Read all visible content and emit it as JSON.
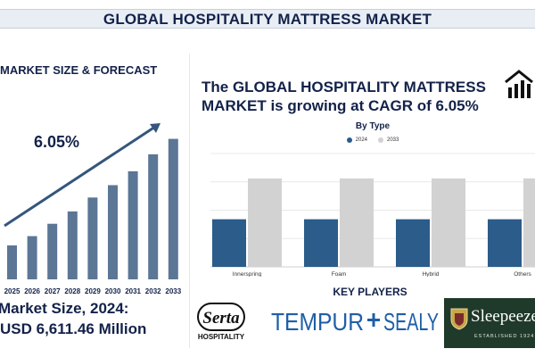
{
  "header": {
    "title": "GLOBAL HOSPITALITY MATTRESS MARKET"
  },
  "left": {
    "subtitle": "MARKET SIZE & FORECAST",
    "market_size_label": "Market Size, 2024:",
    "market_size_value": "USD 6,611.46 Million"
  },
  "right": {
    "headline_line1": "The GLOBAL HOSPITALITY MATTRESS",
    "headline_line2": "MARKET is growing at CAGR of 6.05%",
    "bytype_title": "By Type",
    "key_players_title": "KEY PLAYERS"
  },
  "logos": {
    "serta_word": "Serta",
    "serta_sub": "HOSPITALITY",
    "tempur_left": "TEMPUR",
    "tempur_right": "SEALY",
    "sleepeezee_name": "Sleepeezee",
    "sleepeezee_established": "ESTABLISHED 1924"
  },
  "colors": {
    "navy": "#13224a",
    "bar_blue": "#5c7696",
    "series_2024": "#2b5c8a",
    "series_2033": "#d2d2d2",
    "arrow": "#34567d",
    "tempur_blue": "#1e5fa8",
    "sleepeezee_green": "#1f3a2a"
  },
  "icons": {
    "house": "house-chart-icon",
    "crest": "crest-icon"
  },
  "chart_data": [
    {
      "type": "bar",
      "title": "MARKET SIZE & FORECAST",
      "categories": [
        "2025",
        "2026",
        "2027",
        "2028",
        "2029",
        "2030",
        "2031",
        "2032",
        "2033"
      ],
      "values": [
        2.2,
        2.8,
        3.6,
        4.4,
        5.3,
        6.1,
        7.0,
        8.1,
        9.1
      ],
      "annotation": "6.05%",
      "ylim": [
        0,
        10
      ],
      "grid": false
    },
    {
      "type": "bar",
      "title": "By Type",
      "categories": [
        "Innerspring",
        "Foam",
        "Hybrid",
        "Others"
      ],
      "series": [
        {
          "name": "2024",
          "values": [
            42,
            42,
            42,
            42
          ]
        },
        {
          "name": "2033",
          "values": [
            78,
            78,
            78,
            78
          ]
        }
      ],
      "ylim": [
        0,
        100
      ],
      "grid": true,
      "legend": "top"
    }
  ]
}
